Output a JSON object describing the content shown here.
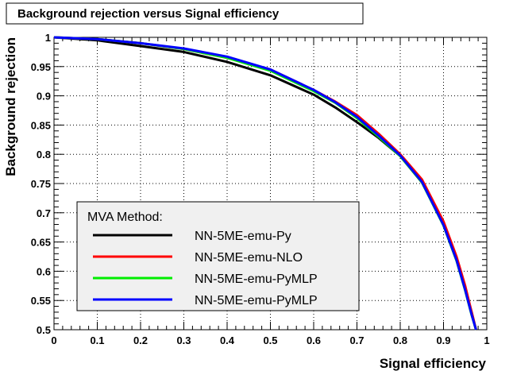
{
  "chart_data": {
    "type": "line",
    "title": "Background rejection versus Signal efficiency",
    "xlabel": "Signal efficiency",
    "ylabel": "Background rejection",
    "xlim": [
      0,
      1
    ],
    "ylim": [
      0.5,
      1
    ],
    "grid": true,
    "x_ticks": [
      "0",
      "0.1",
      "0.2",
      "0.3",
      "0.4",
      "0.5",
      "0.6",
      "0.7",
      "0.8",
      "0.9",
      "1"
    ],
    "y_ticks": [
      "0.5",
      "0.55",
      "0.6",
      "0.65",
      "0.7",
      "0.75",
      "0.8",
      "0.85",
      "0.9",
      "0.95",
      "1"
    ],
    "legend": {
      "title": "MVA Method:",
      "placement": "bottom-left"
    },
    "series": [
      {
        "name": "NN-5ME-emu-Py",
        "color": "#000000",
        "x": [
          0,
          0.1,
          0.2,
          0.3,
          0.4,
          0.5,
          0.6,
          0.65,
          0.7,
          0.75,
          0.8,
          0.85,
          0.9,
          0.93,
          0.95,
          0.965,
          0.975
        ],
        "y": [
          1.0,
          0.995,
          0.985,
          0.975,
          0.958,
          0.935,
          0.902,
          0.88,
          0.855,
          0.828,
          0.797,
          0.752,
          0.68,
          0.62,
          0.57,
          0.53,
          0.5
        ]
      },
      {
        "name": "NN-5ME-emu-NLO",
        "color": "#ff0000",
        "x": [
          0,
          0.1,
          0.2,
          0.3,
          0.4,
          0.5,
          0.6,
          0.65,
          0.7,
          0.75,
          0.8,
          0.85,
          0.9,
          0.93,
          0.95,
          0.965,
          0.975
        ],
        "y": [
          1.0,
          0.997,
          0.99,
          0.98,
          0.965,
          0.945,
          0.91,
          0.89,
          0.867,
          0.835,
          0.8,
          0.757,
          0.685,
          0.625,
          0.575,
          0.53,
          0.5
        ]
      },
      {
        "name": "NN-5ME-emu-PyMLP",
        "color": "#00ee00",
        "x": [
          0,
          0.1,
          0.2,
          0.3,
          0.4,
          0.5,
          0.6,
          0.65,
          0.7,
          0.75,
          0.8,
          0.85,
          0.9,
          0.93,
          0.95,
          0.965,
          0.975
        ],
        "y": [
          1.0,
          0.997,
          0.99,
          0.98,
          0.965,
          0.943,
          0.908,
          0.888,
          0.862,
          0.83,
          0.797,
          0.752,
          0.678,
          0.618,
          0.567,
          0.525,
          0.5
        ]
      },
      {
        "name": "NN-5ME-emu-PyMLP",
        "color": "#0000ff",
        "x": [
          0,
          0.1,
          0.2,
          0.3,
          0.4,
          0.5,
          0.6,
          0.65,
          0.7,
          0.75,
          0.8,
          0.85,
          0.9,
          0.93,
          0.95,
          0.965,
          0.975
        ],
        "y": [
          1.0,
          0.997,
          0.99,
          0.981,
          0.967,
          0.945,
          0.91,
          0.889,
          0.864,
          0.832,
          0.798,
          0.753,
          0.679,
          0.619,
          0.568,
          0.526,
          0.5
        ]
      }
    ]
  }
}
